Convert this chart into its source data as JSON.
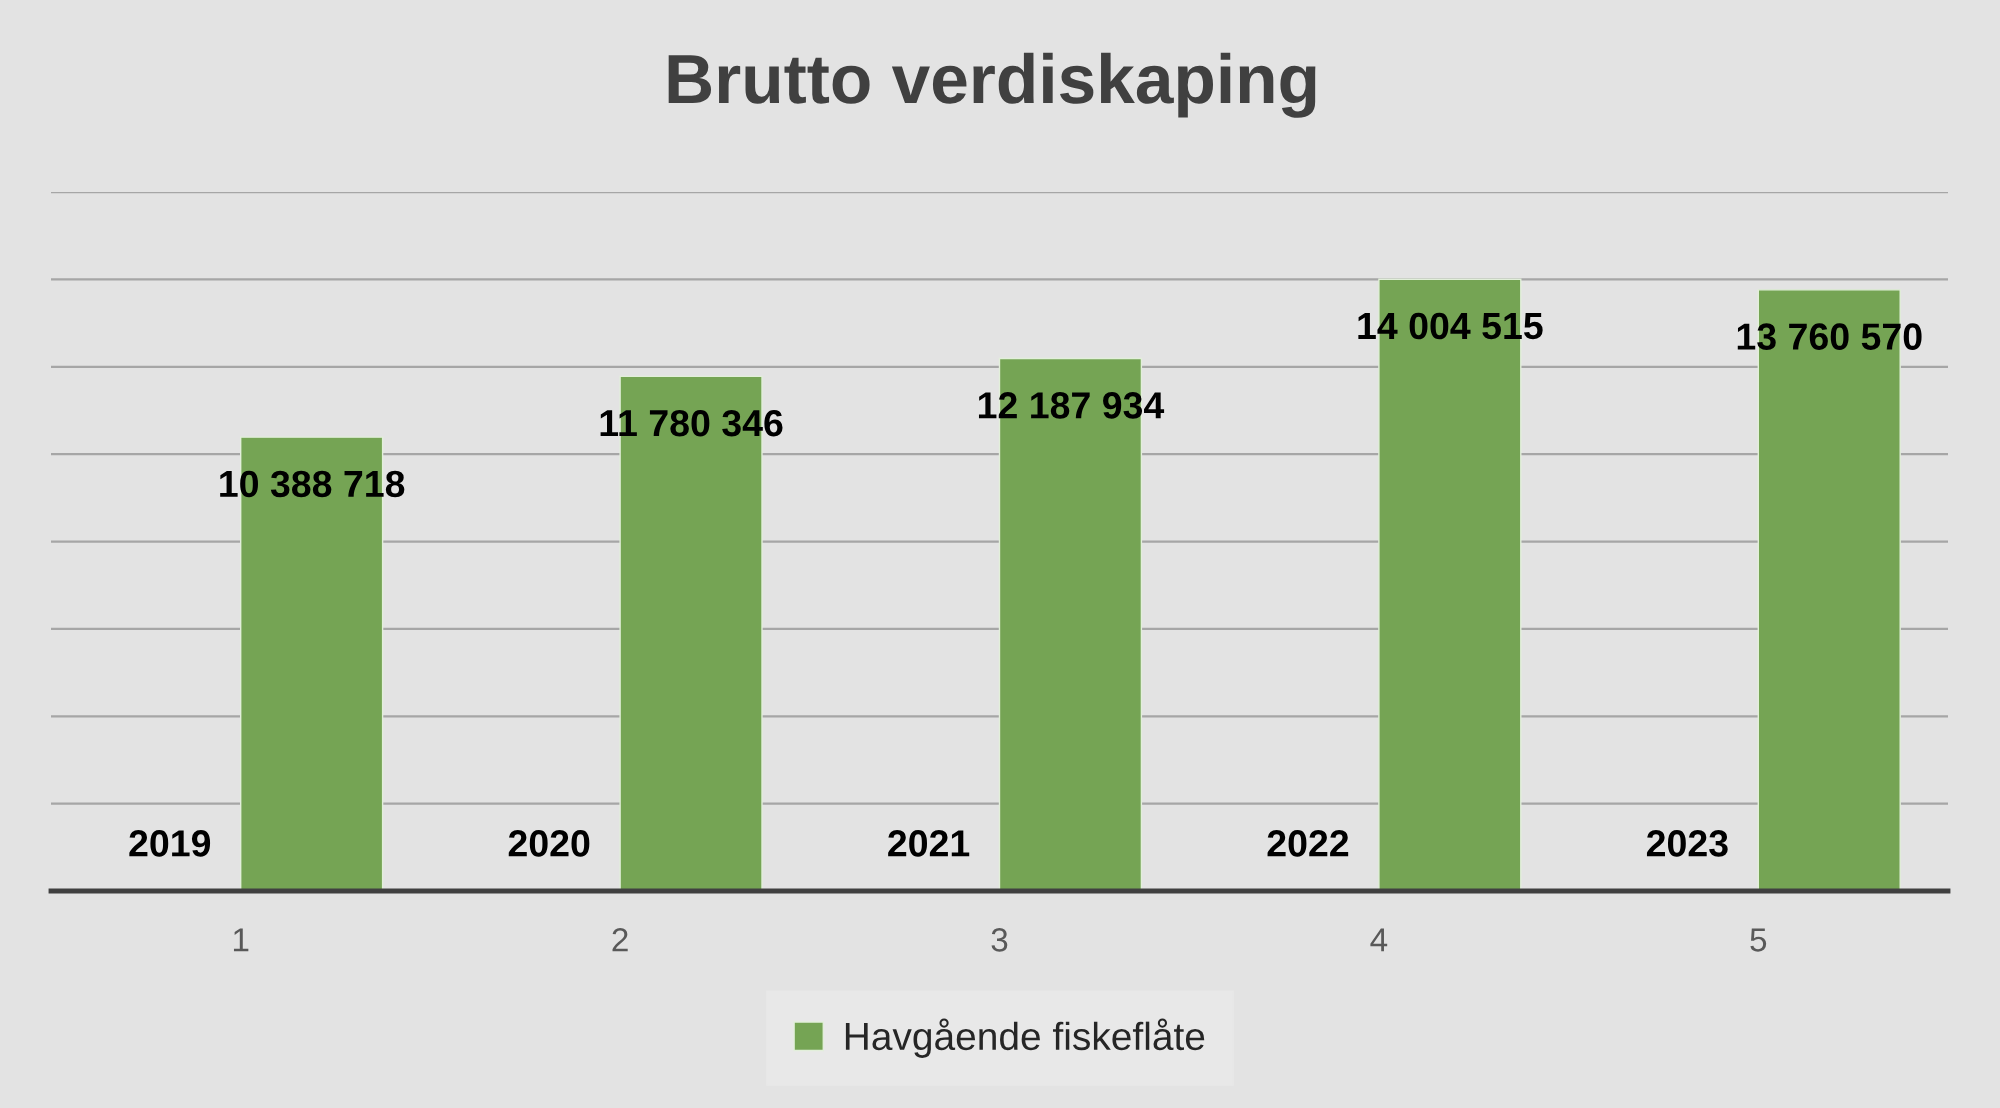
{
  "chart_data": {
    "type": "bar",
    "title": "Brutto verdiskaping",
    "categories": [
      "1",
      "2",
      "3",
      "4",
      "5"
    ],
    "series": [
      {
        "name": "Havgående fiskeflåte",
        "color": "#75a454",
        "values": [
          10388718,
          11780346,
          12187934,
          14004515,
          13760570
        ],
        "value_labels": [
          "10 388 718",
          "11 780 346",
          "12 187 934",
          "14 004 515",
          "13 760 570"
        ]
      }
    ],
    "ylim": [
      0,
      16000000
    ],
    "yticks": [
      {
        "value": 0,
        "label": null
      },
      {
        "value": 2000000,
        "label": null
      },
      {
        "value": 4000000,
        "label": null
      },
      {
        "value": 6000000,
        "label": null
      },
      {
        "value": 8000000,
        "label": null
      },
      {
        "value": 10000000,
        "label": null
      },
      {
        "value": 12000000,
        "label": null
      },
      {
        "value": 14000000,
        "label": null
      },
      {
        "value": 16000000,
        "label": null
      }
    ],
    "tick_labels": "x",
    "grid": "y",
    "legend": "bottom",
    "annotations": [
      {
        "text": "2019",
        "x": "1",
        "y": 0
      },
      {
        "text": "2020",
        "x": "2",
        "y": 0
      },
      {
        "text": "2021",
        "x": "3",
        "y": 0
      },
      {
        "text": "2022",
        "x": "4",
        "y": 0
      },
      {
        "text": "2023",
        "x": "5",
        "y": 0
      }
    ]
  }
}
